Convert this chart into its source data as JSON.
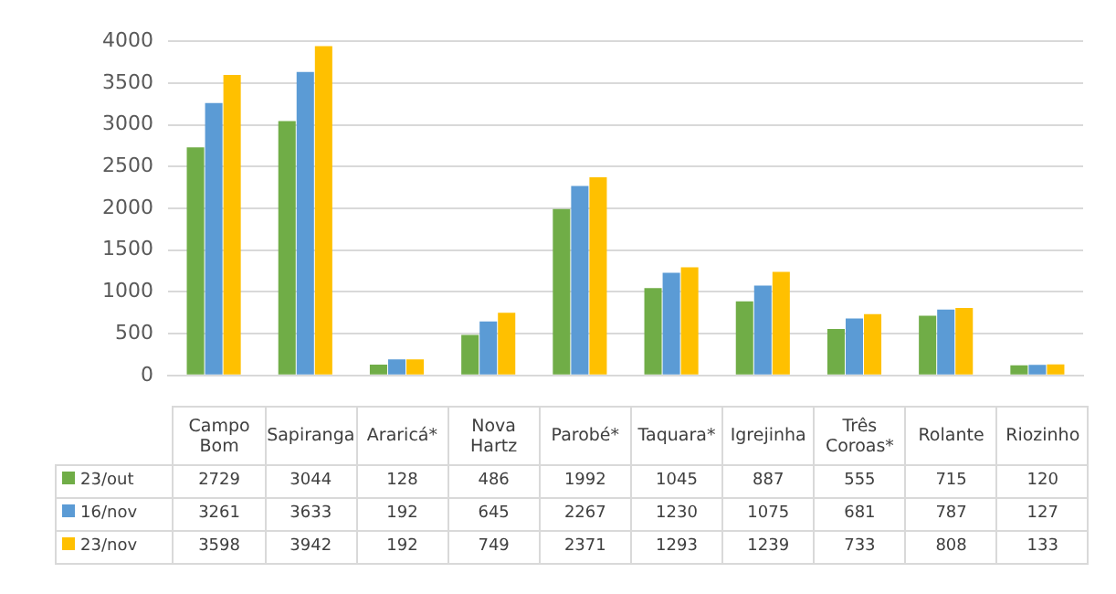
{
  "chart_data": {
    "type": "bar",
    "categories": [
      "Campo Bom",
      "Sapiranga",
      "Araricá*",
      "Nova Hartz",
      "Parobé*",
      "Taquara*",
      "Igrejinha",
      "Três Coroas*",
      "Rolante",
      "Riozinho"
    ],
    "series": [
      {
        "name": "23/out",
        "color": "#70ad47",
        "values": [
          2729,
          3044,
          128,
          486,
          1992,
          1045,
          887,
          555,
          715,
          120
        ]
      },
      {
        "name": "16/nov",
        "color": "#5b9bd5",
        "values": [
          3261,
          3633,
          192,
          645,
          2267,
          1230,
          1075,
          681,
          787,
          127
        ]
      },
      {
        "name": "23/nov",
        "color": "#ffc000",
        "values": [
          3598,
          3942,
          192,
          749,
          2371,
          1293,
          1239,
          733,
          808,
          133
        ]
      }
    ],
    "ylim": [
      0,
      4000
    ],
    "yticks": [
      0,
      500,
      1000,
      1500,
      2000,
      2500,
      3000,
      3500,
      4000
    ],
    "grid": "y",
    "legend": "bottom left",
    "data_labels": true
  }
}
